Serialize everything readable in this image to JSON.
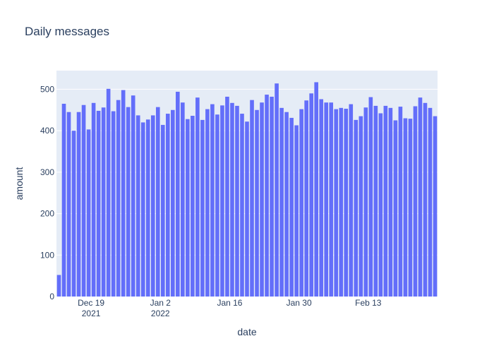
{
  "chart_data": {
    "type": "bar",
    "title": "Daily messages",
    "xlabel": "date",
    "ylabel": "amount",
    "ylim": [
      0,
      545
    ],
    "yticks": [
      0,
      100,
      200,
      300,
      400,
      500
    ],
    "xticks": [
      {
        "date": "2021-12-19",
        "line1": "Dec 19",
        "line2": "2021"
      },
      {
        "date": "2022-01-02",
        "line1": "Jan 2",
        "line2": "2022"
      },
      {
        "date": "2022-01-16",
        "line1": "Jan 16",
        "line2": ""
      },
      {
        "date": "2022-01-30",
        "line1": "Jan 30",
        "line2": ""
      },
      {
        "date": "2022-02-13",
        "line1": "Feb 13",
        "line2": ""
      }
    ],
    "x": [
      "2021-12-12",
      "2021-12-13",
      "2021-12-14",
      "2021-12-15",
      "2021-12-16",
      "2021-12-17",
      "2021-12-18",
      "2021-12-19",
      "2021-12-20",
      "2021-12-21",
      "2021-12-22",
      "2021-12-23",
      "2021-12-24",
      "2021-12-25",
      "2021-12-26",
      "2021-12-27",
      "2021-12-28",
      "2021-12-29",
      "2021-12-30",
      "2021-12-31",
      "2022-01-01",
      "2022-01-02",
      "2022-01-03",
      "2022-01-04",
      "2022-01-05",
      "2022-01-06",
      "2022-01-07",
      "2022-01-08",
      "2022-01-09",
      "2022-01-10",
      "2022-01-11",
      "2022-01-12",
      "2022-01-13",
      "2022-01-14",
      "2022-01-15",
      "2022-01-16",
      "2022-01-17",
      "2022-01-18",
      "2022-01-19",
      "2022-01-20",
      "2022-01-21",
      "2022-01-22",
      "2022-01-23",
      "2022-01-24",
      "2022-01-25",
      "2022-01-26",
      "2022-01-27",
      "2022-01-28",
      "2022-01-29",
      "2022-01-30",
      "2022-01-31",
      "2022-02-01",
      "2022-02-02",
      "2022-02-03",
      "2022-02-04",
      "2022-02-05",
      "2022-02-06",
      "2022-02-07",
      "2022-02-08",
      "2022-02-09",
      "2022-02-10",
      "2022-02-11",
      "2022-02-12",
      "2022-02-13",
      "2022-02-14",
      "2022-02-15",
      "2022-02-16",
      "2022-02-17",
      "2022-02-18",
      "2022-02-19",
      "2022-02-20",
      "2022-02-21",
      "2022-02-22",
      "2022-02-23",
      "2022-02-24",
      "2022-02-25",
      "2022-02-26"
    ],
    "values": [
      52,
      465,
      445,
      400,
      445,
      462,
      403,
      467,
      448,
      456,
      501,
      447,
      474,
      498,
      457,
      485,
      437,
      420,
      427,
      437,
      457,
      414,
      441,
      450,
      494,
      468,
      428,
      436,
      480,
      426,
      452,
      464,
      439,
      461,
      482,
      467,
      460,
      441,
      422,
      474,
      450,
      468,
      487,
      482,
      514,
      455,
      445,
      431,
      413,
      452,
      473,
      490,
      517,
      476,
      468,
      468,
      452,
      455,
      453,
      464,
      426,
      435,
      456,
      481,
      460,
      442,
      460,
      455,
      425,
      458,
      430,
      429,
      459,
      480,
      467,
      455,
      435
    ],
    "grid": true,
    "colors": {
      "bar": "#636efa",
      "plot_bg": "#e5ecf6",
      "grid": "#ffffff",
      "text": "#2a3f5f"
    }
  }
}
